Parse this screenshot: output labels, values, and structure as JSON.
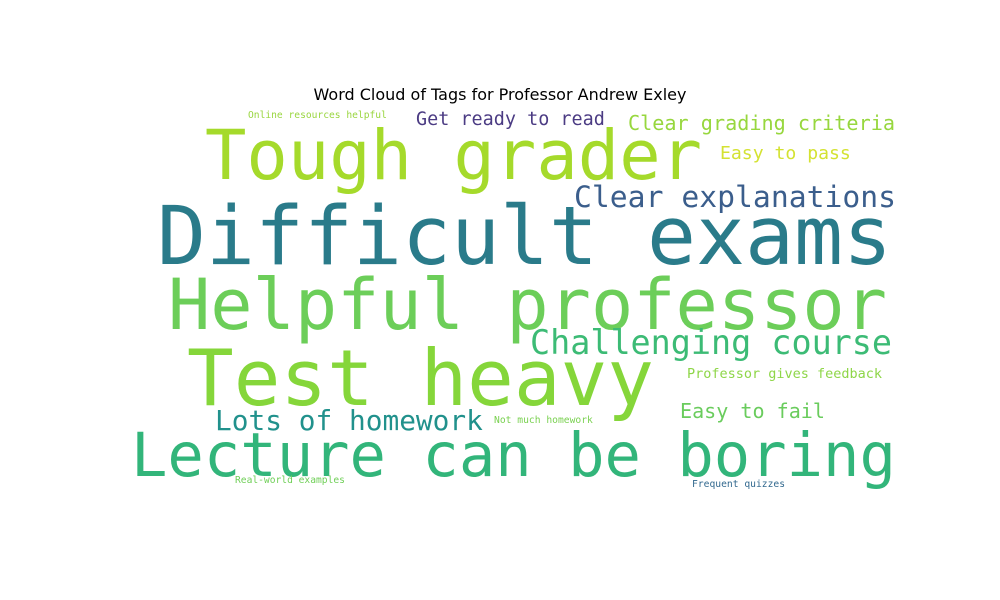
{
  "figure": {
    "title": "Word Cloud of Tags for Professor Andrew Exley"
  },
  "words": [
    {
      "text": "Difficult exams",
      "color": "#2a7b8a"
    },
    {
      "text": "Tough grader",
      "color": "#a5da2b"
    },
    {
      "text": "Helpful professor",
      "color": "#6cce59"
    },
    {
      "text": "Test heavy",
      "color": "#85d63a"
    },
    {
      "text": "Lecture can be boring",
      "color": "#32b57a"
    },
    {
      "text": "Challenging course",
      "color": "#3cbb75"
    },
    {
      "text": "Clear explanations",
      "color": "#3b5e8c"
    },
    {
      "text": "Lots of homework",
      "color": "#21918c"
    },
    {
      "text": "Get ready to read",
      "color": "#4b3b83"
    },
    {
      "text": "Clear grading criteria",
      "color": "#97d73e"
    },
    {
      "text": "Easy to pass",
      "color": "#d4e232"
    },
    {
      "text": "Easy to fail",
      "color": "#6acc5d"
    },
    {
      "text": "Professor gives feedback",
      "color": "#8ed648"
    },
    {
      "text": "Online resources helpful",
      "color": "#9ad640"
    },
    {
      "text": "Not much homework",
      "color": "#7ad151"
    },
    {
      "text": "Real-world examples",
      "color": "#6fcf57"
    },
    {
      "text": "Frequent quizzes",
      "color": "#31688e"
    }
  ]
}
